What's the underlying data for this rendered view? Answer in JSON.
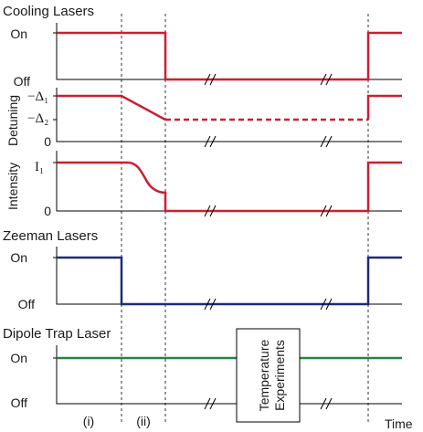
{
  "panels": {
    "cooling": {
      "title": "Cooling Lasers",
      "on": "On",
      "off": "Off"
    },
    "detuning": {
      "ylabel": "Detuning",
      "tick_d1": "−Δ₁",
      "tick_d2": "−Δ₂",
      "tick_zero": "0"
    },
    "intensity": {
      "ylabel": "Intensity",
      "tick_i1": "I₁",
      "tick_zero": "0"
    },
    "zeeman": {
      "title": "Zeeman Lasers",
      "on": "On",
      "off": "Off"
    },
    "dipole": {
      "title": "Dipole Trap Laser",
      "on": "On",
      "off": "Off"
    }
  },
  "experiment_box": "Temperature Experiments",
  "phases": [
    "(i)",
    "(ii)"
  ],
  "time_label": "Time",
  "colors": {
    "red": "#cc1f2f",
    "blue": "#1f2a7a",
    "green": "#1a8a3a",
    "axis": "#000000",
    "guide": "#333333"
  }
}
